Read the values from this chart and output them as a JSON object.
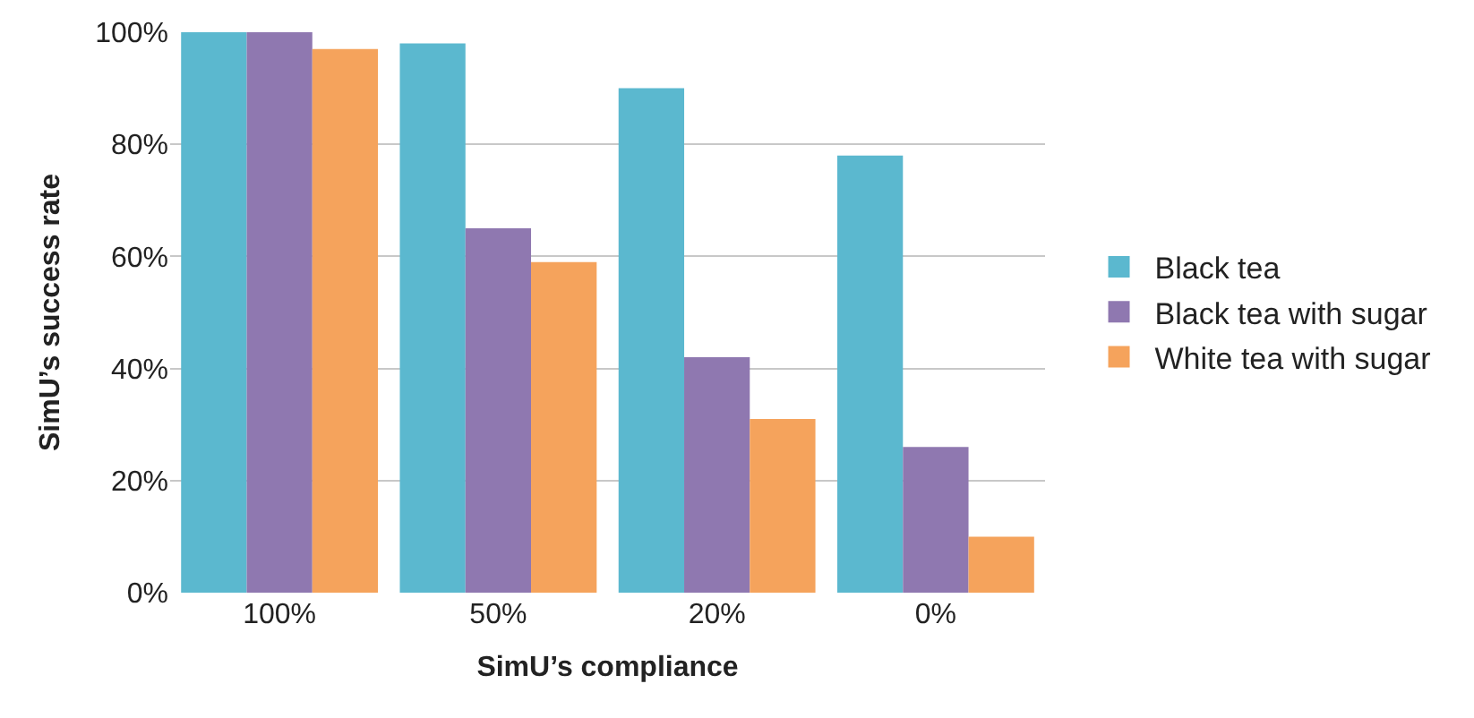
{
  "chart_data": {
    "type": "bar",
    "xlabel": "SimU’s compliance",
    "ylabel": "SimU’s success rate",
    "categories": [
      "100%",
      "50%",
      "20%",
      "0%"
    ],
    "series": [
      {
        "name": "Black tea",
        "color": "#5bb8cf",
        "values": [
          100,
          98,
          90,
          78
        ]
      },
      {
        "name": "Black tea with sugar",
        "color": "#8f78b0",
        "values": [
          100,
          65,
          42,
          26
        ]
      },
      {
        "name": "White tea with sugar",
        "color": "#f5a35c",
        "values": [
          97,
          59,
          31,
          10
        ]
      }
    ],
    "ylim": [
      0,
      100
    ],
    "yticks": [
      {
        "value": 0,
        "label": "0%"
      },
      {
        "value": 20,
        "label": "20%"
      },
      {
        "value": 40,
        "label": "40%"
      },
      {
        "value": 60,
        "label": "60%"
      },
      {
        "value": 80,
        "label": "80%"
      },
      {
        "value": 100,
        "label": "100%"
      }
    ],
    "grid": "y",
    "legend": "right"
  }
}
